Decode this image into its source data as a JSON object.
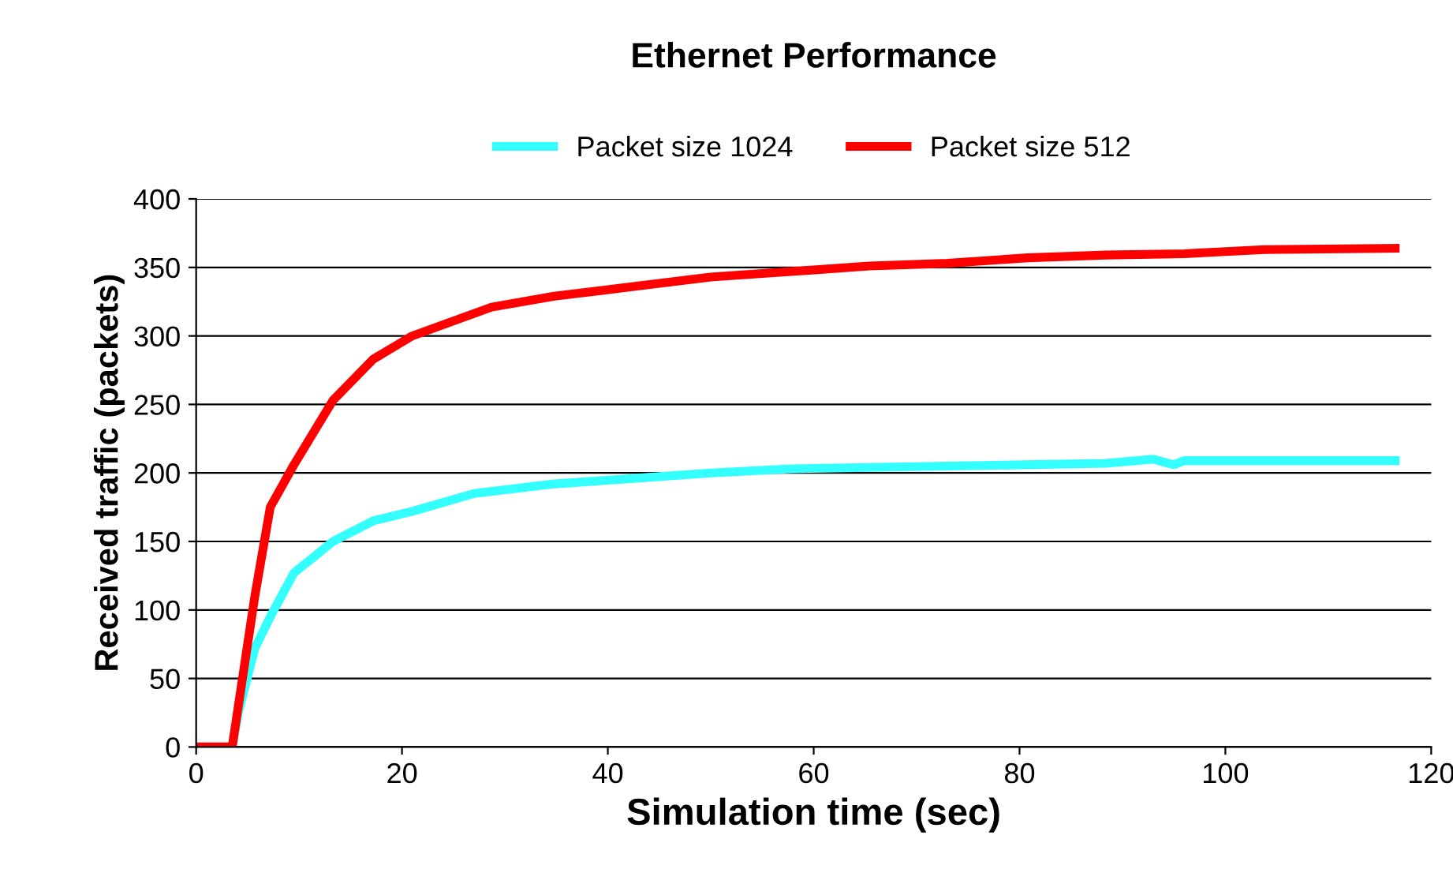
{
  "chart_data": {
    "type": "line",
    "title": "Ethernet Performance",
    "xlabel": "Simulation time (sec)",
    "ylabel": "Received traffic (packets)",
    "xlim": [
      0,
      120
    ],
    "ylim": [
      0,
      400
    ],
    "xticks": [
      0,
      20,
      40,
      60,
      80,
      100,
      120
    ],
    "yticks": [
      0,
      50,
      100,
      150,
      200,
      250,
      300,
      350,
      400
    ],
    "grid": "y",
    "legend": "top",
    "marker": "none",
    "line_style": "solid",
    "series": [
      {
        "name": "Packet size 1024",
        "color": "#33ffff",
        "x": [
          0,
          3.5,
          4.1,
          5.7,
          7.2,
          9.5,
          13.3,
          17.2,
          21,
          27,
          34.8,
          42.5,
          50,
          57.8,
          73,
          88.4,
          93,
          95,
          96,
          100,
          116.5
        ],
        "values": [
          0,
          0,
          25,
          72,
          95,
          127,
          150,
          165,
          172,
          185,
          192,
          196,
          200,
          203,
          205,
          207,
          210,
          206,
          209,
          209,
          209
        ]
      },
      {
        "name": "Packet size 512",
        "color": "#ff0000",
        "x": [
          0,
          3.5,
          4.1,
          5.7,
          7.2,
          9.5,
          13.3,
          17.2,
          21,
          28.7,
          34.8,
          42.5,
          50,
          57.8,
          65.4,
          73,
          80.8,
          88.4,
          96,
          103.8,
          116.5
        ],
        "values": [
          0,
          0,
          30,
          110,
          175,
          206,
          253,
          283,
          300,
          321,
          329,
          336,
          343,
          347,
          351,
          353,
          357,
          359,
          360,
          363,
          364
        ]
      }
    ]
  }
}
